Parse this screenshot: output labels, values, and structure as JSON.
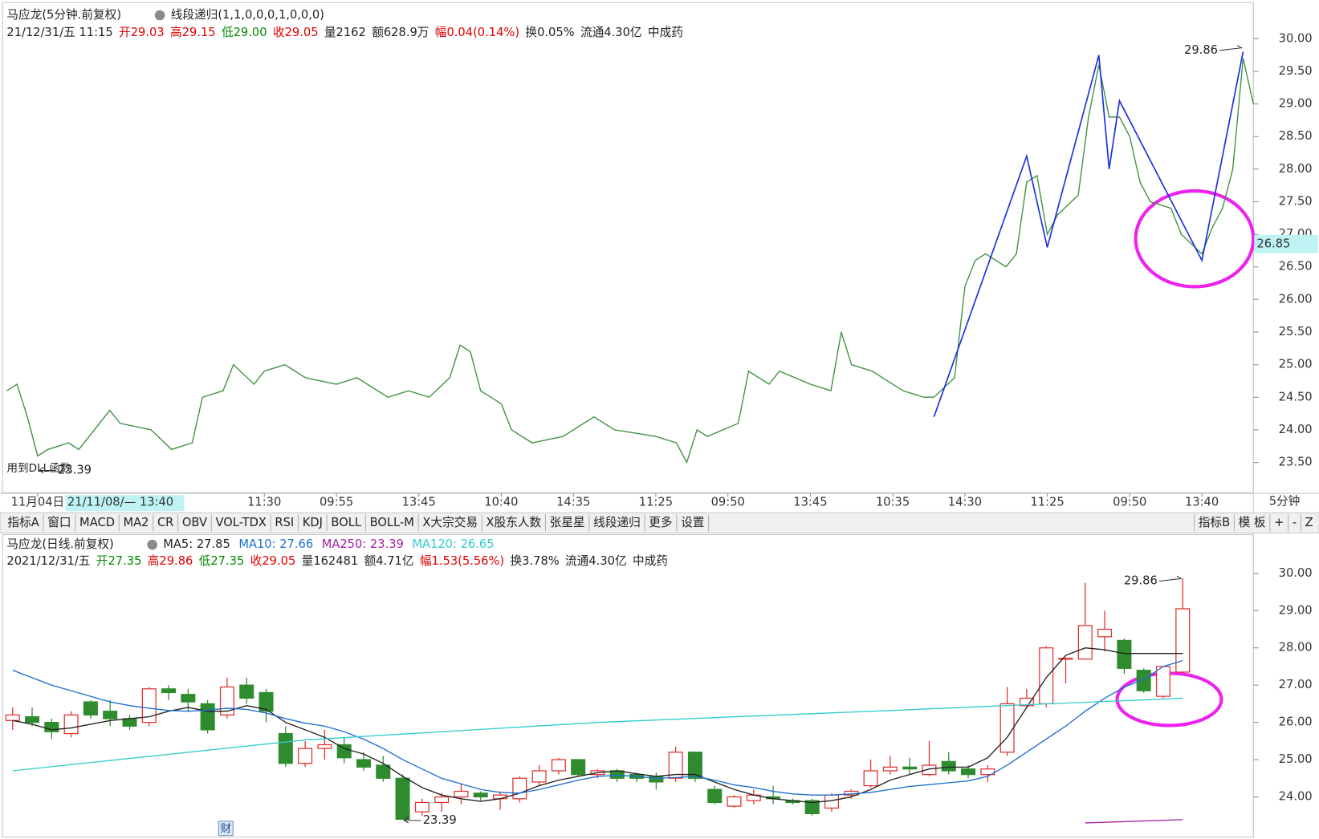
{
  "chart_data": [
    {
      "type": "line",
      "title": "马应龙(5分钟.前复权)",
      "indicator": "线段递归(1,1,0,0,0,1,0,0,0)",
      "info": [
        {
          "text": "21/12/31/五 11:15",
          "color": "#222222"
        },
        {
          "text": "开29.03",
          "color": "#e00000"
        },
        {
          "text": "高29.15",
          "color": "#e00000"
        },
        {
          "text": "低29.00",
          "color": "#008800"
        },
        {
          "text": "收29.05",
          "color": "#e00000"
        },
        {
          "text": "量2162",
          "color": "#222222"
        },
        {
          "text": "额628.9万",
          "color": "#222222"
        },
        {
          "text": "幅0.04(0.14%)",
          "color": "#e00000"
        },
        {
          "text": "换0.05%",
          "color": "#222222"
        },
        {
          "text": "流通4.30亿",
          "color": "#222222"
        },
        {
          "text": "中成药",
          "color": "#222222"
        }
      ],
      "note": "用到DLL函数",
      "period_label": "5分钟",
      "cursor": {
        "x_label": "21/11/08/— 13:40",
        "value": 26.85
      },
      "xlim": [
        0,
        121
      ],
      "xticks": [
        {
          "value": 3,
          "label": "11月04日"
        },
        {
          "value": 25,
          "label": "11:30"
        },
        {
          "value": 32,
          "label": "09:55"
        },
        {
          "value": 40,
          "label": "13:45"
        },
        {
          "value": 48,
          "label": "10:40"
        },
        {
          "value": 55,
          "label": "14:35"
        },
        {
          "value": 63,
          "label": "11:25"
        },
        {
          "value": 70,
          "label": "09:50"
        },
        {
          "value": 78,
          "label": "13:45"
        },
        {
          "value": 86,
          "label": "10:35"
        },
        {
          "value": 93,
          "label": "14:30"
        },
        {
          "value": 101,
          "label": "11:25"
        },
        {
          "value": 109,
          "label": "09:50"
        },
        {
          "value": 116,
          "label": "13:40"
        }
      ],
      "ylim": [
        23.05,
        30.49
      ],
      "yticks": [
        {
          "value": 23.5,
          "label": "23.50"
        },
        {
          "value": 24,
          "label": "24.00"
        },
        {
          "value": 24.5,
          "label": "24.50"
        },
        {
          "value": 25,
          "label": "25.00"
        },
        {
          "value": 25.5,
          "label": "25.50"
        },
        {
          "value": 26,
          "label": "26.00"
        },
        {
          "value": 26.5,
          "label": "26.50"
        },
        {
          "value": 27,
          "label": "27.00"
        },
        {
          "value": 27.5,
          "label": "27.50"
        },
        {
          "value": 28,
          "label": "28.00"
        },
        {
          "value": 28.5,
          "label": "28.50"
        },
        {
          "value": 29,
          "label": "29.00"
        },
        {
          "value": 29.5,
          "label": "29.50"
        },
        {
          "value": 30,
          "label": "30.00"
        }
      ],
      "series": [
        {
          "color": "#3f8f3f",
          "x": [
            0,
            1,
            2,
            3,
            4,
            6,
            7,
            10,
            11,
            14,
            16,
            18,
            19,
            21,
            22,
            24,
            25,
            27,
            29,
            32,
            34,
            37,
            39,
            41,
            43,
            44,
            45,
            46,
            48,
            49,
            51,
            54,
            57,
            59,
            63,
            65,
            66,
            67,
            68,
            71,
            72,
            74,
            75,
            78,
            80,
            81,
            82,
            84,
            87,
            89,
            90,
            92,
            93,
            94,
            95,
            97,
            98,
            99,
            100,
            101,
            102,
            104,
            105,
            106,
            107,
            108,
            109,
            110,
            111,
            113,
            114,
            116,
            117,
            118,
            119,
            120,
            121
          ],
          "values": [
            24.6,
            24.7,
            24.2,
            23.6,
            23.7,
            23.8,
            23.7,
            24.3,
            24.1,
            24.0,
            23.7,
            23.8,
            24.5,
            24.6,
            25.0,
            24.7,
            24.9,
            25.0,
            24.8,
            24.7,
            24.8,
            24.5,
            24.6,
            24.5,
            24.8,
            25.3,
            25.2,
            24.6,
            24.4,
            24.0,
            23.8,
            23.9,
            24.2,
            24.0,
            23.9,
            23.8,
            23.5,
            24.0,
            23.9,
            24.1,
            24.9,
            24.7,
            24.9,
            24.7,
            24.6,
            25.5,
            25.0,
            24.9,
            24.6,
            24.5,
            24.5,
            24.8,
            26.2,
            26.6,
            26.7,
            26.5,
            26.7,
            27.8,
            27.9,
            27.0,
            27.3,
            27.6,
            28.8,
            29.6,
            28.8,
            28.8,
            28.5,
            27.8,
            27.5,
            27.4,
            27.0,
            26.7,
            27.1,
            27.4,
            28.0,
            29.7,
            29.0
          ]
        },
        {
          "color": "#1f2fe0",
          "x": [
            90,
            99,
            101,
            106,
            107,
            108,
            116,
            120
          ],
          "values": [
            24.2,
            28.2,
            26.8,
            29.75,
            28.0,
            29.05,
            26.6,
            29.8
          ]
        }
      ],
      "annotations": [
        {
          "text": "29.86",
          "x": 120,
          "value": 29.86
        },
        {
          "text": "23.39",
          "x": 3,
          "value": 23.39
        }
      ]
    },
    {
      "type": "candlestick",
      "title": "马应龙(日线.前复权)",
      "info": [
        {
          "text": "2021/12/31/五",
          "color": "#222222"
        },
        {
          "text": "开27.35",
          "color": "#008800"
        },
        {
          "text": "高29.86",
          "color": "#e00000"
        },
        {
          "text": "低27.35",
          "color": "#008800"
        },
        {
          "text": "收29.05",
          "color": "#e00000"
        },
        {
          "text": "量162481",
          "color": "#222222"
        },
        {
          "text": "额4.71亿",
          "color": "#222222"
        },
        {
          "text": "幅1.53(5.56%)",
          "color": "#e00000"
        },
        {
          "text": "换3.78%",
          "color": "#222222"
        },
        {
          "text": "流通4.30亿",
          "color": "#222222"
        },
        {
          "text": "中成药",
          "color": "#222222"
        }
      ],
      "badge": "财",
      "up_color": "#e03030",
      "down_color": "#2e8b2e",
      "xlim": [
        0,
        60
      ],
      "ylim": [
        22.94,
        31.04
      ],
      "yticks": [
        {
          "value": 24,
          "label": "24.00"
        },
        {
          "value": 25,
          "label": "25.00"
        },
        {
          "value": 26,
          "label": "26.00"
        },
        {
          "value": 27,
          "label": "27.00"
        },
        {
          "value": 28,
          "label": "28.00"
        },
        {
          "value": 29,
          "label": "29.00"
        },
        {
          "value": 30,
          "label": "30.00"
        }
      ],
      "open": [
        26.05,
        26.15,
        26.0,
        25.7,
        26.55,
        26.3,
        26.1,
        26.0,
        26.9,
        26.75,
        26.5,
        26.2,
        27.0,
        26.8,
        25.7,
        24.9,
        25.3,
        25.4,
        25.0,
        24.85,
        24.5,
        23.6,
        23.85,
        24.0,
        24.1,
        23.95,
        23.95,
        24.4,
        24.7,
        25.0,
        24.6,
        24.7,
        24.6,
        24.55,
        24.5,
        25.2,
        24.2,
        23.75,
        23.9,
        24.0,
        23.9,
        23.9,
        23.7,
        24.05,
        24.3,
        24.7,
        24.8,
        24.6,
        24.95,
        24.75,
        24.6,
        25.2,
        26.45,
        26.5,
        27.7,
        27.7,
        28.3,
        28.2,
        27.4,
        26.7,
        27.35
      ],
      "high": [
        26.4,
        26.4,
        26.1,
        26.3,
        26.6,
        26.6,
        26.2,
        26.95,
        27.0,
        26.9,
        26.6,
        27.2,
        27.2,
        26.9,
        25.9,
        25.5,
        25.8,
        25.6,
        25.2,
        25.1,
        24.6,
        23.95,
        24.1,
        24.35,
        24.15,
        24.15,
        24.55,
        24.85,
        25.05,
        25.0,
        24.75,
        24.75,
        24.65,
        24.65,
        25.35,
        25.2,
        24.3,
        24.05,
        24.2,
        24.3,
        23.95,
        23.95,
        24.1,
        24.2,
        25.0,
        25.1,
        25.05,
        25.5,
        25.2,
        24.85,
        24.85,
        26.95,
        26.9,
        28.05,
        27.75,
        29.75,
        29.0,
        28.25,
        27.45,
        27.5,
        29.86
      ],
      "low": [
        25.8,
        25.9,
        25.55,
        25.6,
        26.1,
        25.9,
        25.8,
        25.9,
        26.6,
        26.3,
        25.7,
        26.1,
        26.5,
        26.0,
        24.8,
        24.8,
        25.0,
        24.9,
        24.7,
        24.4,
        23.39,
        23.5,
        23.6,
        23.8,
        23.9,
        23.65,
        23.85,
        24.3,
        24.6,
        24.55,
        24.5,
        24.4,
        24.4,
        24.2,
        24.4,
        24.4,
        23.8,
        23.7,
        23.8,
        23.8,
        23.8,
        23.5,
        23.6,
        23.95,
        24.25,
        24.6,
        24.6,
        24.55,
        24.6,
        24.5,
        24.4,
        25.1,
        26.4,
        26.4,
        27.05,
        27.7,
        27.9,
        27.3,
        26.8,
        26.65,
        27.35
      ],
      "close": [
        26.2,
        26.0,
        25.75,
        26.2,
        26.2,
        26.1,
        25.9,
        26.9,
        26.8,
        26.55,
        25.8,
        26.95,
        26.65,
        26.3,
        24.9,
        25.3,
        25.4,
        25.05,
        24.8,
        24.5,
        23.4,
        23.85,
        24.0,
        24.15,
        24.0,
        24.05,
        24.5,
        24.7,
        25.0,
        24.6,
        24.7,
        24.5,
        24.5,
        24.4,
        25.2,
        24.5,
        23.85,
        24.0,
        24.05,
        23.95,
        23.85,
        23.55,
        24.05,
        24.15,
        24.7,
        24.8,
        24.75,
        24.85,
        24.7,
        24.6,
        24.75,
        26.5,
        26.65,
        28.0,
        27.72,
        28.6,
        28.5,
        27.45,
        26.85,
        27.5,
        29.05
      ],
      "series": [
        {
          "name": "MA5: 27.85",
          "color": "#222222",
          "values": [
            26.05,
            25.95,
            25.8,
            25.85,
            25.95,
            26.05,
            26.1,
            26.15,
            26.3,
            26.4,
            26.3,
            26.3,
            26.45,
            26.35,
            26.0,
            25.8,
            25.6,
            25.3,
            25.15,
            24.9,
            24.55,
            24.25,
            24.05,
            23.95,
            23.88,
            23.95,
            24.1,
            24.3,
            24.45,
            24.55,
            24.65,
            24.7,
            24.62,
            24.55,
            24.6,
            24.6,
            24.4,
            24.2,
            24.05,
            23.95,
            23.9,
            23.85,
            23.9,
            24.0,
            24.2,
            24.45,
            24.6,
            24.75,
            24.8,
            24.8,
            25.05,
            25.6,
            26.4,
            27.2,
            27.8,
            28.0,
            27.95,
            27.85,
            27.85,
            27.85,
            27.85
          ]
        },
        {
          "name": "MA10: 27.66",
          "color": "#1e6fd0",
          "values": [
            27.4,
            27.2,
            27.0,
            26.85,
            26.7,
            26.55,
            26.45,
            26.38,
            26.32,
            26.3,
            26.33,
            26.38,
            26.35,
            26.25,
            26.1,
            25.98,
            25.9,
            25.75,
            25.55,
            25.3,
            25.0,
            24.75,
            24.5,
            24.35,
            24.2,
            24.12,
            24.1,
            24.2,
            24.32,
            24.45,
            24.55,
            24.58,
            24.55,
            24.5,
            24.52,
            24.55,
            24.45,
            24.32,
            24.25,
            24.15,
            24.08,
            24.05,
            24.05,
            24.08,
            24.12,
            24.2,
            24.28,
            24.33,
            24.38,
            24.43,
            24.55,
            24.85,
            25.2,
            25.55,
            25.9,
            26.3,
            26.65,
            26.95,
            27.15,
            27.5,
            27.66
          ]
        },
        {
          "name": "MA250: 23.39",
          "color": "#a020a0",
          "x": [
            55,
            60
          ],
          "values": [
            23.3,
            23.39
          ]
        },
        {
          "name": "MA120: 26.65",
          "color": "#33cccc",
          "x": [
            0,
            15,
            30,
            45,
            60
          ],
          "values": [
            24.7,
            25.53,
            26.0,
            26.32,
            26.65
          ]
        }
      ],
      "annotations": [
        {
          "text": "29.86",
          "x": 60,
          "value": 29.86
        },
        {
          "text": "23.39",
          "x": 20,
          "value": 23.39
        }
      ]
    }
  ],
  "toolbar": {
    "left": [
      {
        "text": "指标A"
      },
      {
        "text": "窗口"
      },
      {
        "text": "MACD"
      },
      {
        "text": "MA2"
      },
      {
        "text": "CR"
      },
      {
        "text": "OBV"
      },
      {
        "text": "VOL-TDX"
      },
      {
        "text": "RSI"
      },
      {
        "text": "KDJ"
      },
      {
        "text": "BOLL"
      },
      {
        "text": "BOLL-M"
      },
      {
        "text": "X大宗交易"
      },
      {
        "text": "X股东人数"
      },
      {
        "text": "张星星"
      },
      {
        "text": "线段递归",
        "color": "#e00000"
      },
      {
        "text": "更多"
      },
      {
        "text": "设置"
      }
    ],
    "right": [
      {
        "text": "指标B"
      },
      {
        "text": "模 板"
      },
      {
        "text": "+"
      },
      {
        "text": "-"
      },
      {
        "text": "Z"
      }
    ]
  }
}
